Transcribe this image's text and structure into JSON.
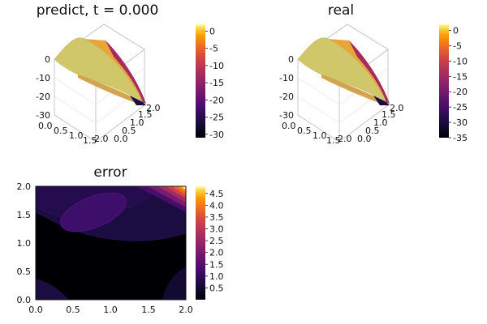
{
  "chart_data": [
    {
      "type": "surface",
      "title": "predict, t = 0.000",
      "x_ticks": [
        "0.0",
        "0.5",
        "1.0",
        "1.5",
        "2.0"
      ],
      "y_ticks": [
        "0.0",
        "0.5",
        "1.0",
        "1.5",
        "2.0"
      ],
      "z_ticks": [
        "0",
        "-10",
        "-20",
        "-30"
      ],
      "xlim": [
        0,
        2
      ],
      "ylim": [
        0,
        2
      ],
      "zlim": [
        -30,
        2
      ],
      "colorbar": {
        "ticks": [
          "0",
          "-5",
          "-10",
          "-15",
          "-20",
          "-25",
          "-30"
        ],
        "min": -31,
        "max": 2
      },
      "colormap": "inferno"
    },
    {
      "type": "surface",
      "title": "real",
      "x_ticks": [
        "0.0",
        "0.5",
        "1.0",
        "1.5",
        "2.0"
      ],
      "y_ticks": [
        "0.0",
        "0.5",
        "1.0",
        "1.5",
        "2.0"
      ],
      "z_ticks": [
        "0",
        "-10",
        "-20",
        "-30"
      ],
      "xlim": [
        0,
        2
      ],
      "ylim": [
        0,
        2
      ],
      "zlim": [
        -35,
        2
      ],
      "colorbar": {
        "ticks": [
          "0",
          "-5",
          "-10",
          "-15",
          "-20",
          "-25",
          "-30",
          "-35"
        ],
        "min": -35,
        "max": 2
      },
      "colormap": "inferno"
    },
    {
      "type": "contour",
      "title": "error",
      "x_ticks": [
        "0.0",
        "0.5",
        "1.0",
        "1.5",
        "2.0"
      ],
      "y_ticks": [
        "0.0",
        "0.5",
        "1.0",
        "1.5",
        "2.0"
      ],
      "xlim": [
        0,
        2
      ],
      "ylim": [
        0,
        2
      ],
      "colorbar": {
        "ticks": [
          "0.5",
          "1.0",
          "1.5",
          "2.0",
          "2.5",
          "3.0",
          "3.5",
          "4.0",
          "4.5"
        ],
        "min": 0,
        "max": 4.8
      },
      "colormap": "inferno"
    }
  ]
}
